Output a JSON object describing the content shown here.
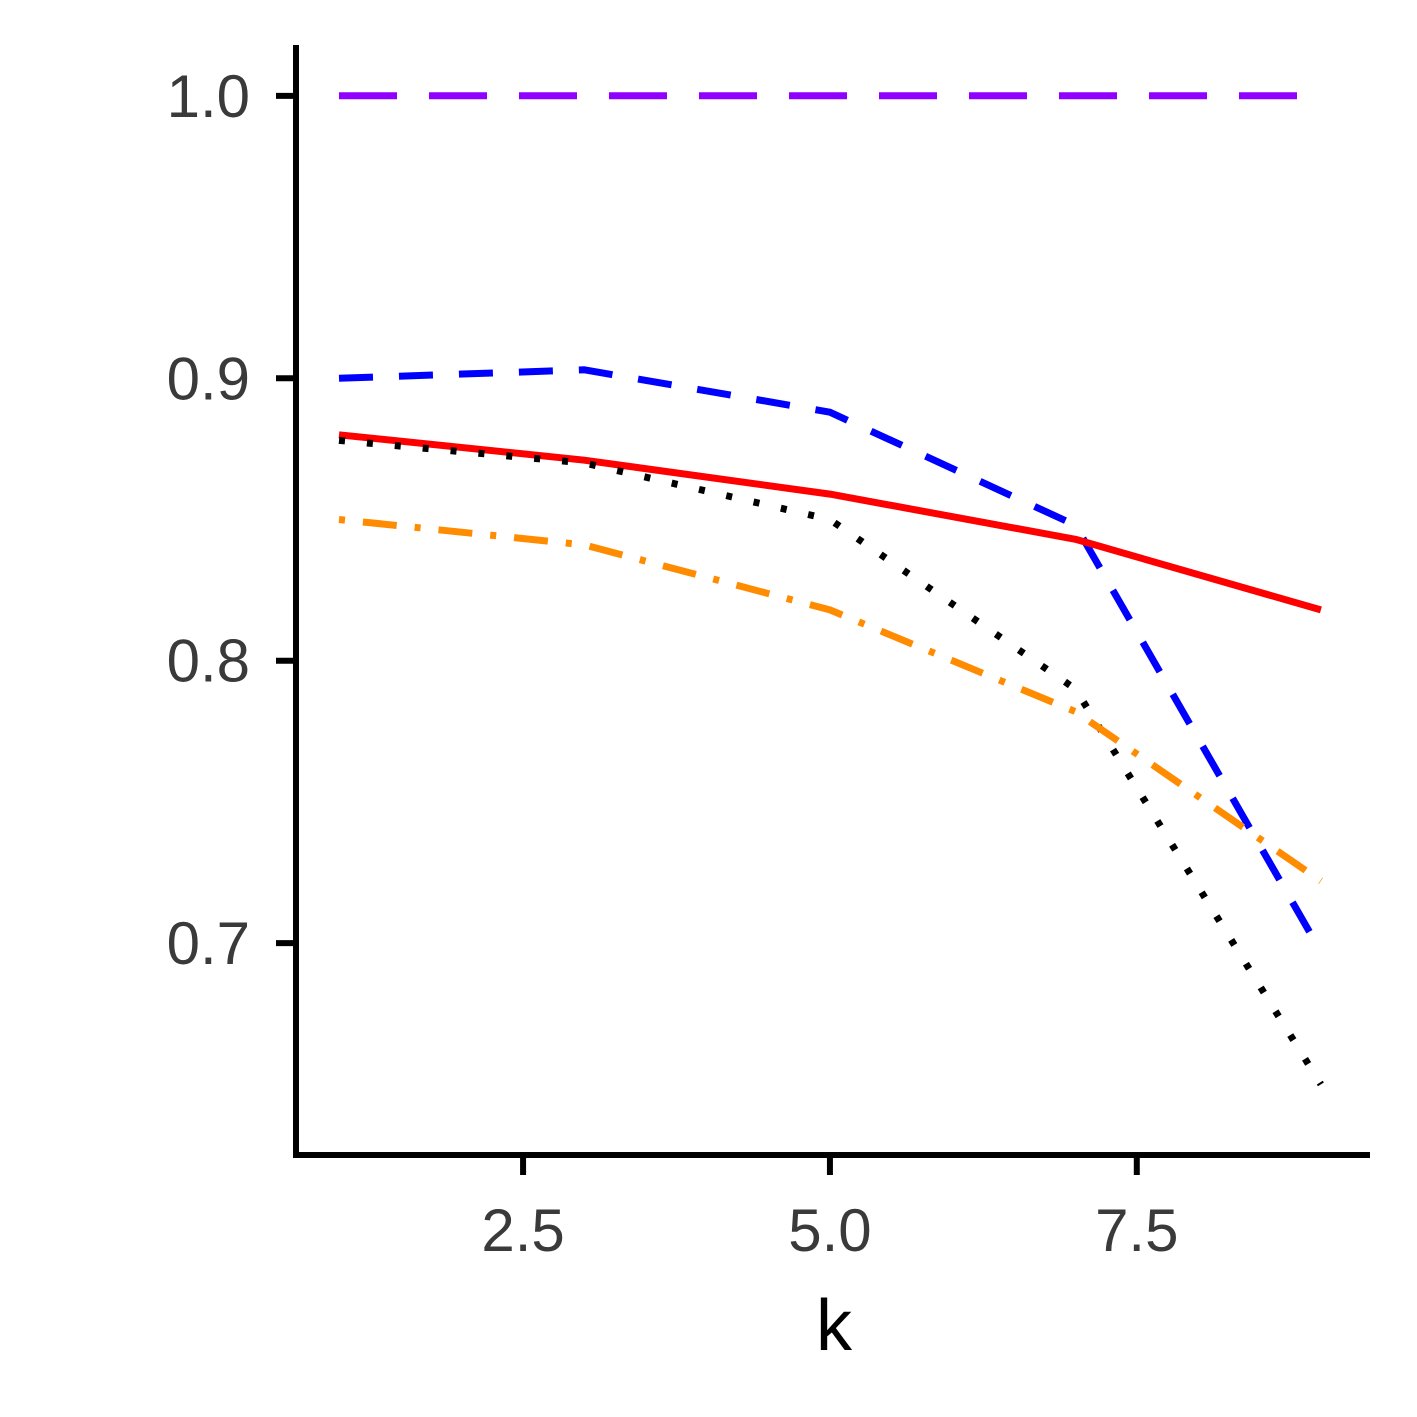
{
  "chart_data": {
    "type": "line",
    "title": "",
    "xlabel": "k",
    "ylabel": "",
    "xlim": [
      0.65,
      9.4
    ],
    "ylim": [
      0.625,
      1.018
    ],
    "xticks": [
      "2.5",
      "5.0",
      "7.5"
    ],
    "xtick_values": [
      2.5,
      5.0,
      7.5
    ],
    "yticks": [
      "0.7",
      "0.8",
      "0.9",
      "1.0"
    ],
    "ytick_values": [
      0.7,
      0.8,
      0.9,
      1.0
    ],
    "grid": false,
    "legend": "none",
    "x": [
      1,
      3,
      5,
      7,
      9
    ],
    "series": [
      {
        "values": [
          1.0,
          1.0,
          1.0,
          1.0,
          1.0
        ],
        "color": "#8f00ff",
        "style": "longdash"
      },
      {
        "values": [
          0.9,
          0.903,
          0.888,
          0.848,
          0.697
        ],
        "color": "#0000ff",
        "style": "dashed"
      },
      {
        "values": [
          0.88,
          0.871,
          0.859,
          0.843,
          0.818
        ],
        "color": "#ff0000",
        "style": "solid"
      },
      {
        "values": [
          0.878,
          0.87,
          0.85,
          0.79,
          0.65
        ],
        "color": "#000000",
        "style": "dotted"
      },
      {
        "values": [
          0.85,
          0.841,
          0.818,
          0.782,
          0.722
        ],
        "color": "#ff8c00",
        "style": "dotdash"
      }
    ]
  }
}
